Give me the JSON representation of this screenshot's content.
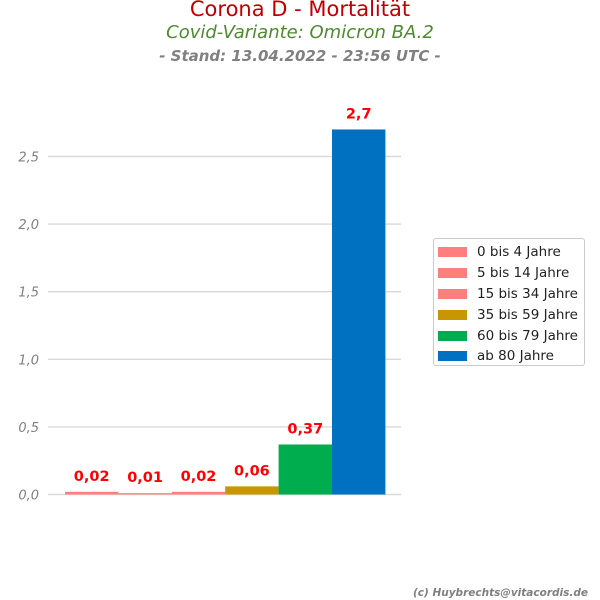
{
  "header": {
    "title": "Corona D - Mortalität",
    "subtitle": "Covid-Variante: Omicron BA.2",
    "stand": "- Stand: 13.04.2022 - 23:56 UTC -"
  },
  "credit": "(c) Huybrechts@vitacordis.de",
  "chart_data": {
    "type": "bar",
    "title": "Corona D - Mortalität",
    "subtitle": "Covid-Variante: Omicron BA.2",
    "xlabel": "",
    "ylabel": "",
    "ylim": [
      0,
      2.75
    ],
    "yticks": [
      0.0,
      0.5,
      1.0,
      1.5,
      2.0,
      2.5
    ],
    "ytick_labels": [
      "0,0",
      "0,5",
      "1,0",
      "1,5",
      "2,0",
      "2,5"
    ],
    "grid": "horizontal",
    "legend_position": "right",
    "series": [
      {
        "name": "0 bis 4 Jahre",
        "value": 0.02,
        "label": "0,02",
        "color": "#ff7f7f"
      },
      {
        "name": "5 bis 14 Jahre",
        "value": 0.01,
        "label": "0,01",
        "color": "#ff7f7f"
      },
      {
        "name": "15 bis 34 Jahre",
        "value": 0.02,
        "label": "0,02",
        "color": "#ff7f7f"
      },
      {
        "name": "35 bis 59 Jahre",
        "value": 0.06,
        "label": "0,06",
        "color": "#c89600"
      },
      {
        "name": "60 bis 79 Jahre",
        "value": 0.37,
        "label": "0,37",
        "color": "#00ad4e"
      },
      {
        "name": "ab 80 Jahre",
        "value": 2.7,
        "label": "2,7",
        "color": "#0070c0"
      }
    ],
    "data_label_color": "#ff0000",
    "tick_label_color": "#808080",
    "grid_color": "#d9d9d9"
  }
}
